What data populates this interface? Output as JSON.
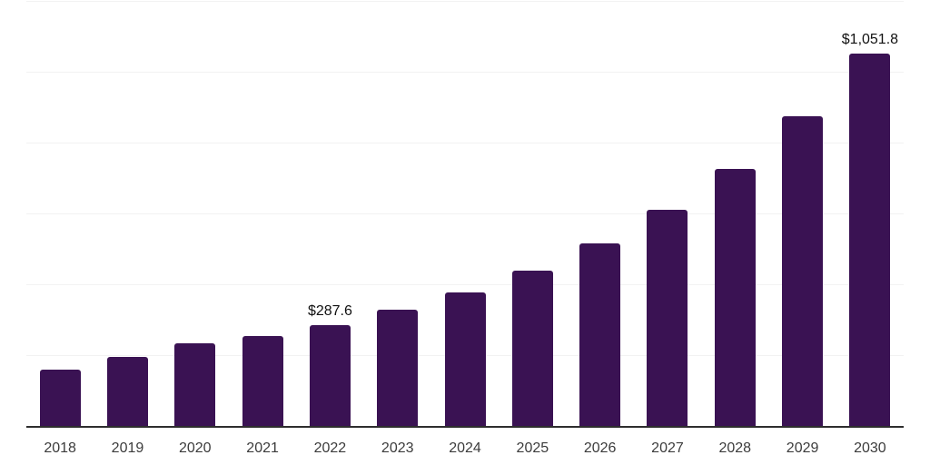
{
  "chart_data": {
    "type": "bar",
    "title": "",
    "xlabel": "",
    "ylabel": "",
    "categories": [
      "2018",
      "2019",
      "2020",
      "2021",
      "2022",
      "2023",
      "2024",
      "2025",
      "2026",
      "2027",
      "2028",
      "2029",
      "2030"
    ],
    "values": [
      161,
      198,
      235,
      255,
      287.6,
      329,
      380,
      441,
      517,
      612,
      728,
      876,
      1051.8
    ],
    "bar_value_labels": [
      "",
      "",
      "",
      "",
      "$287.6",
      "",
      "",
      "",
      "",
      "",
      "",
      "",
      "$1,051.8"
    ],
    "ylim": [
      0,
      1200
    ],
    "grid": {
      "visible": true,
      "interval": 200,
      "y_tick_labels_visible": false
    },
    "legend": "none",
    "colors": {
      "bar": "#3A1253",
      "gridline": "#F2F2F2",
      "axis_line": "#2E2E2E",
      "tick_label": "#3C3C3C",
      "data_label": "#111111",
      "background": "#FFFFFF"
    }
  }
}
